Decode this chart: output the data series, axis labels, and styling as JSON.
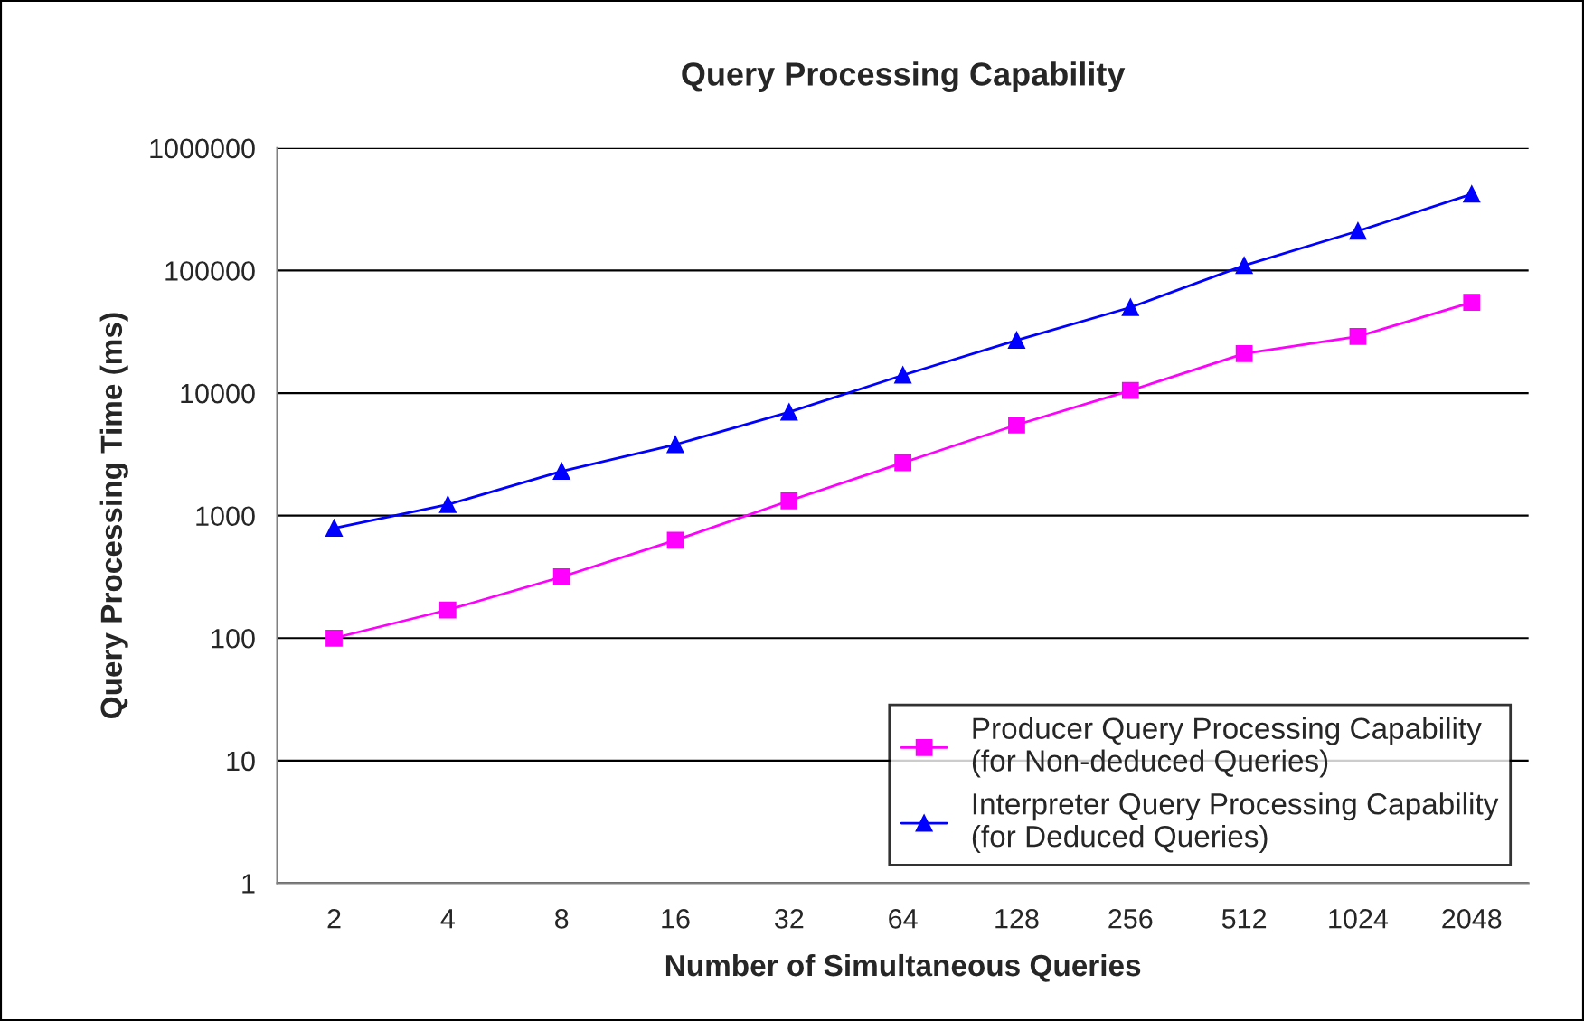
{
  "chart_data": {
    "type": "line",
    "title": "Query Processing Capability",
    "xlabel": "Number of Simultaneous Queries",
    "ylabel": "Query Processing Time (ms)",
    "categories": [
      "2",
      "4",
      "8",
      "16",
      "32",
      "64",
      "128",
      "256",
      "512",
      "1024",
      "2048"
    ],
    "series": [
      {
        "name": "Producer Query Processing Capability\n(for Non-deduced Queries)",
        "color": "#ff00ff",
        "marker": "square",
        "values": [
          100,
          170,
          316,
          630,
          1320,
          2700,
          5500,
          10500,
          21000,
          29000,
          55000
        ]
      },
      {
        "name": "Interpreter Query Processing Capability\n(for Deduced Queries)",
        "color": "#0000ff",
        "marker": "triangle",
        "values": [
          790,
          1230,
          2300,
          3800,
          7000,
          14000,
          27000,
          50000,
          110000,
          210000,
          420000
        ]
      }
    ],
    "log": "y",
    "ylim": [
      1,
      1000000
    ],
    "yticks": [
      1,
      10,
      100,
      1000,
      10000,
      100000,
      1000000
    ],
    "grid": "y",
    "legend": "bottom right",
    "line_style": "solid"
  }
}
